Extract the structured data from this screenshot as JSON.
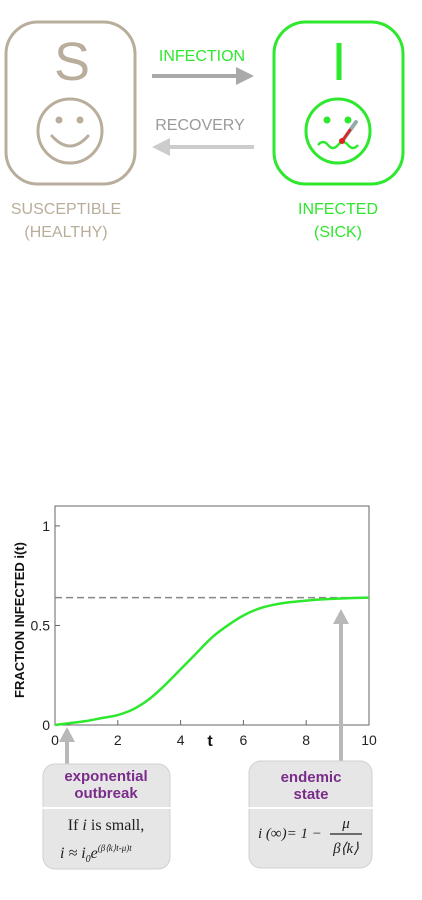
{
  "diagram": {
    "susceptible": {
      "letter": "S",
      "label_line1": "SUSCEPTIBLE",
      "label_line2": "(HEALTHY)",
      "color": "#b9ad9c"
    },
    "infected": {
      "letter": "I",
      "label_line1": "INFECTED",
      "label_line2": "(SICK)",
      "color": "#2ee82e"
    },
    "arrows": {
      "infection_label": "INFECTION",
      "recovery_label": "RECOVERY",
      "infection_color": "#2ee82e",
      "recovery_color": "#9a9a9a"
    }
  },
  "chart_data": {
    "type": "line",
    "ylabel": "FRACTION INFECTED i(t)",
    "xlabel": "t",
    "xlim": [
      0,
      10
    ],
    "ylim": [
      0,
      1.1
    ],
    "x_ticks": [
      "0",
      "2",
      "4",
      "6",
      "8",
      "10"
    ],
    "y_ticks": [
      "0",
      "0.5",
      "1"
    ],
    "asymptote": 0.64,
    "series": [
      {
        "color": "#2ee82e",
        "x": [
          0,
          0.5,
          1,
          1.5,
          2,
          2.5,
          3,
          3.5,
          4,
          4.5,
          5,
          5.5,
          6,
          6.5,
          7,
          7.5,
          8,
          8.5,
          9,
          9.5,
          10
        ],
        "y": [
          0.0,
          0.01,
          0.02,
          0.035,
          0.05,
          0.08,
          0.13,
          0.2,
          0.28,
          0.36,
          0.44,
          0.5,
          0.55,
          0.585,
          0.605,
          0.617,
          0.625,
          0.631,
          0.635,
          0.638,
          0.64
        ]
      }
    ]
  },
  "callouts": {
    "exponential": {
      "title_line1": "exponential",
      "title_line2": "outbreak",
      "text_prefix": "If ",
      "text_var": "i",
      "text_suffix": " is small,",
      "formula_lhs": "i ≈ i",
      "formula_sub": "0",
      "formula_e": "e",
      "formula_exp": "(β⟨k⟩t-μ)t"
    },
    "endemic": {
      "title_line1": "endemic",
      "title_line2": "state",
      "formula_lhs": "i (∞)= 1 −",
      "formula_num": "μ",
      "formula_den": "β⟨k⟩"
    }
  }
}
